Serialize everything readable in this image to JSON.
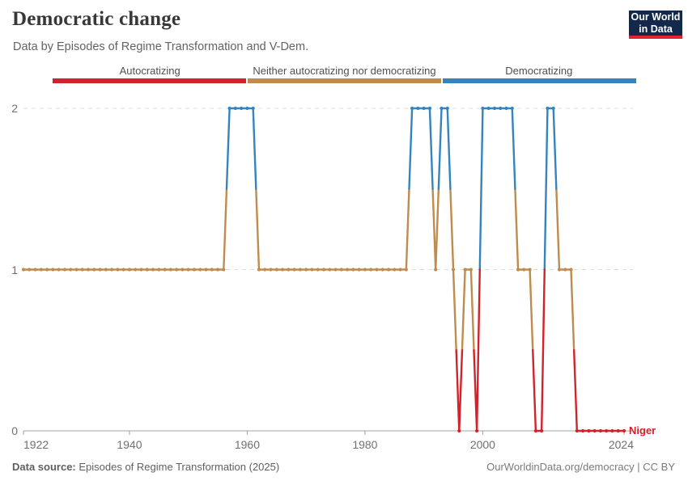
{
  "header": {
    "title": "Democratic change",
    "subtitle": "Data by Episodes of Regime Transformation and V-Dem.",
    "logo": {
      "line1": "Our World",
      "line2": "in Data",
      "bg": "#12294b",
      "accent": "#e0232e"
    }
  },
  "legend": {
    "items": [
      {
        "label": "Autocratizing",
        "value": 0,
        "color": "#d0232b"
      },
      {
        "label": "Neither autocratizing nor democratizing",
        "value": 1,
        "color": "#bf8b4e"
      },
      {
        "label": "Democratizing",
        "value": 2,
        "color": "#3584bf"
      }
    ]
  },
  "chart_data": {
    "type": "line",
    "entity_label": "Niger",
    "title": "Democratic change",
    "xlabel": "",
    "ylabel": "",
    "x_range": [
      1922,
      2024
    ],
    "ylim": [
      0,
      2
    ],
    "y_ticks": [
      0,
      1,
      2
    ],
    "x_ticks": [
      1922,
      1940,
      1960,
      1980,
      2000,
      2024
    ],
    "grid": "dashed horizontal gridlines at 1 and 2, solid axis at 0",
    "legend_position": "top",
    "colors_by_value": {
      "0": "#d0232b",
      "1": "#bf8b4e",
      "2": "#3584bf"
    },
    "categories_by_value": {
      "0": "Autocratizing",
      "1": "Neither autocratizing nor democratizing",
      "2": "Democratizing"
    },
    "steps": [
      {
        "from": 1922,
        "to": 1956,
        "value": 1
      },
      {
        "from": 1957,
        "to": 1961,
        "value": 2
      },
      {
        "from": 1962,
        "to": 1987,
        "value": 1
      },
      {
        "from": 1988,
        "to": 1991,
        "value": 2
      },
      {
        "from": 1992,
        "to": 1992,
        "value": 1
      },
      {
        "from": 1993,
        "to": 1994,
        "value": 2
      },
      {
        "from": 1995,
        "to": 1995,
        "value": 1
      },
      {
        "from": 1996,
        "to": 1996,
        "value": 0
      },
      {
        "from": 1997,
        "to": 1998,
        "value": 1
      },
      {
        "from": 1999,
        "to": 1999,
        "value": 0
      },
      {
        "from": 2000,
        "to": 2005,
        "value": 2
      },
      {
        "from": 2006,
        "to": 2008,
        "value": 1
      },
      {
        "from": 2009,
        "to": 2010,
        "value": 0
      },
      {
        "from": 2011,
        "to": 2012,
        "value": 2
      },
      {
        "from": 2013,
        "to": 2015,
        "value": 1
      },
      {
        "from": 2016,
        "to": 2024,
        "value": 0
      }
    ]
  },
  "footer": {
    "source_label": "Data source:",
    "source_text": " Episodes of Regime Transformation (2025)",
    "credit": "OurWorldinData.org/democracy | CC BY"
  }
}
